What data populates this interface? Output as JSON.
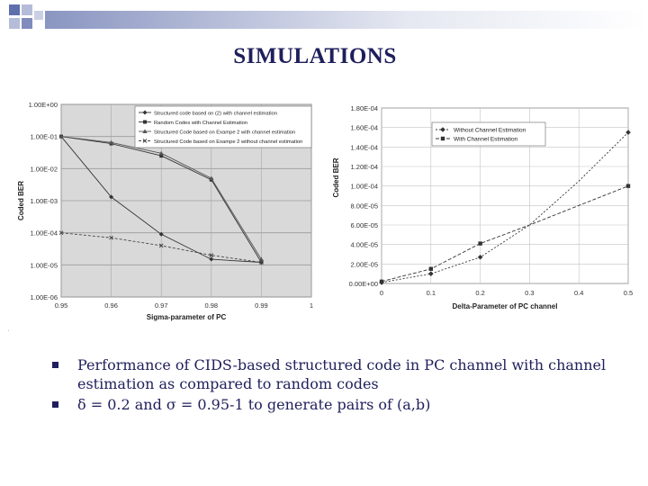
{
  "slide": {
    "title": "SIMULATIONS",
    "bullets": [
      "Performance of CIDS-based structured code in PC channel with channel estimation as compared to random codes",
      "δ = 0.2 and σ = 0.95-1 to generate pairs of (a,b)"
    ],
    "colors": {
      "title": "#1f1f5c",
      "text": "#1f1f5c",
      "deco": "#2a3f8f"
    }
  },
  "chart_data": [
    {
      "type": "line",
      "title": "",
      "xlabel": "Sigma-parameter of PC",
      "ylabel": "Coded BER",
      "log_y": true,
      "ylim": [
        1e-06,
        1
      ],
      "xlim": [
        0.95,
        1
      ],
      "x_tick_labels": [
        "0.95",
        "0.96",
        "0.97",
        "0.98",
        "0.99",
        "1"
      ],
      "y_tick_labels": [
        "1.00E+00",
        "1.00E-01",
        "1.00E-02",
        "1.00E-03",
        "1.00E-04",
        "1.00E-05",
        "1.00E-06"
      ],
      "grid": true,
      "legend_position": "top-right",
      "series": [
        {
          "name": "Structured code based on (2) with channel estimation",
          "x": [
            0.95,
            0.96,
            0.97,
            0.98,
            0.99
          ],
          "y": [
            0.1,
            0.0013,
            9e-05,
            1.5e-05,
            1.2e-05
          ]
        },
        {
          "name": "Random Codes with Channel Estimation",
          "x": [
            0.95,
            0.96,
            0.97,
            0.98,
            0.99
          ],
          "y": [
            0.1,
            0.06,
            0.025,
            0.0045,
            1.2e-05
          ]
        },
        {
          "name": "Structured Code based on Exampe 2 with channel estimation",
          "x": [
            0.95,
            0.96,
            0.97,
            0.98,
            0.99
          ],
          "y": [
            0.1,
            0.065,
            0.03,
            0.005,
            1.5e-05
          ]
        },
        {
          "name": "Structured Code based on Exampe 2 without channel estimation",
          "x": [
            0.95,
            0.96,
            0.97,
            0.98,
            0.99
          ],
          "y": [
            0.0001,
            7e-05,
            4e-05,
            2e-05,
            1.2e-05
          ]
        }
      ]
    },
    {
      "type": "line",
      "title": "",
      "xlabel": "Delta-Parameter of PC channel",
      "ylabel": "Coded BER",
      "xlim": [
        0,
        0.5
      ],
      "ylim": [
        0,
        0.00018
      ],
      "x_tick_labels": [
        "0",
        "0.1",
        "0.2",
        "0.3",
        "0.4",
        "0.5"
      ],
      "y_tick_labels": [
        "1.80E-04",
        "1.60E-04",
        "1.40E-04",
        "1.20E-04",
        "1.00E-04",
        "8.00E-05",
        "6.00E-05",
        "4.00E-05",
        "2.00E-05",
        "0.00E+00"
      ],
      "grid": true,
      "legend_position": "top-center",
      "series": [
        {
          "name": "Without Channel Estimation",
          "marker": "diamond",
          "x": [
            0,
            0.1,
            0.2,
            0.3,
            0.4,
            0.5
          ],
          "y": [
            1e-06,
            1e-05,
            2.7e-05,
            6e-05,
            0.000105,
            0.000155
          ]
        },
        {
          "name": "With Channel Estimation",
          "marker": "square",
          "x": [
            0,
            0.1,
            0.2,
            0.3,
            0.4,
            0.5
          ],
          "y": [
            2e-06,
            1.5e-05,
            4.1e-05,
            6e-05,
            8e-05,
            0.0001
          ]
        }
      ]
    }
  ]
}
